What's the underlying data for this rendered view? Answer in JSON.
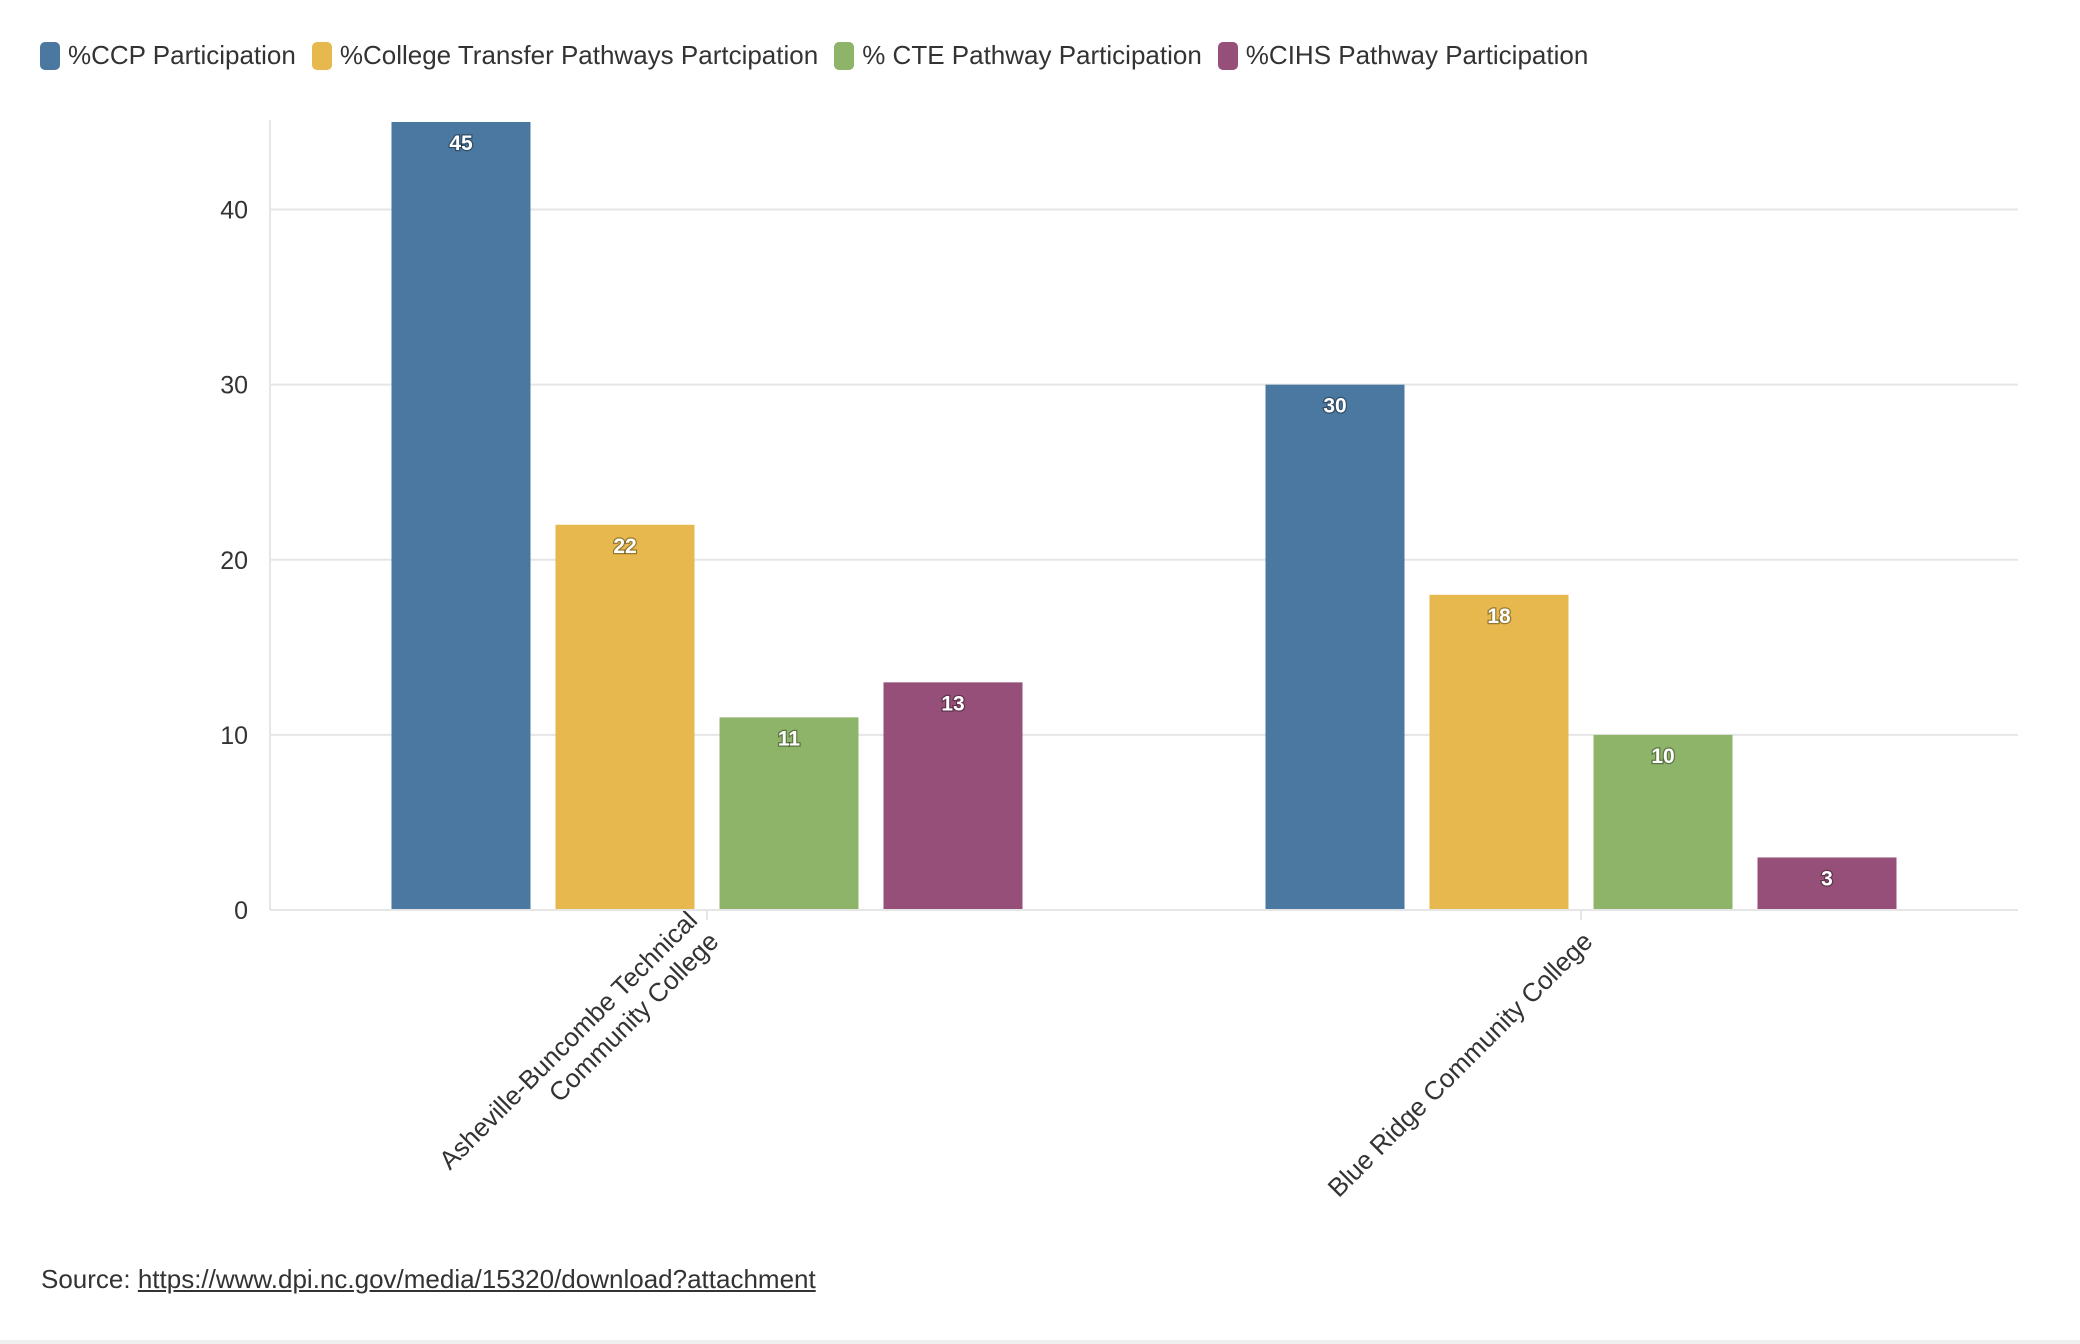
{
  "chart_data": {
    "type": "bar",
    "categories": [
      "Asheville-Buncombe Technical Community College",
      "Blue Ridge Community College"
    ],
    "category_lines": [
      [
        "Asheville-Buncombe Technical",
        "Community College"
      ],
      [
        "Blue Ridge Community College"
      ]
    ],
    "series": [
      {
        "name": "%CCP Participation",
        "color": "#4a78a0",
        "values": [
          45,
          30
        ]
      },
      {
        "name": "%College Transfer Pathways Partcipation",
        "color": "#e6b84d",
        "values": [
          22,
          18
        ]
      },
      {
        "name": "% CTE Pathway Participation",
        "color": "#8db468",
        "values": [
          11,
          10
        ]
      },
      {
        "name": "%CIHS Pathway Participation",
        "color": "#964f79",
        "values": [
          13,
          3
        ]
      }
    ],
    "y_ticks": [
      0,
      10,
      20,
      30,
      40
    ],
    "ylim": [
      0,
      45
    ],
    "grid": true,
    "legend_position": "top-left",
    "data_labels": true
  },
  "source": {
    "label": "Source:",
    "link_text": "https://www.dpi.nc.gov/media/15320/download?attachment"
  }
}
